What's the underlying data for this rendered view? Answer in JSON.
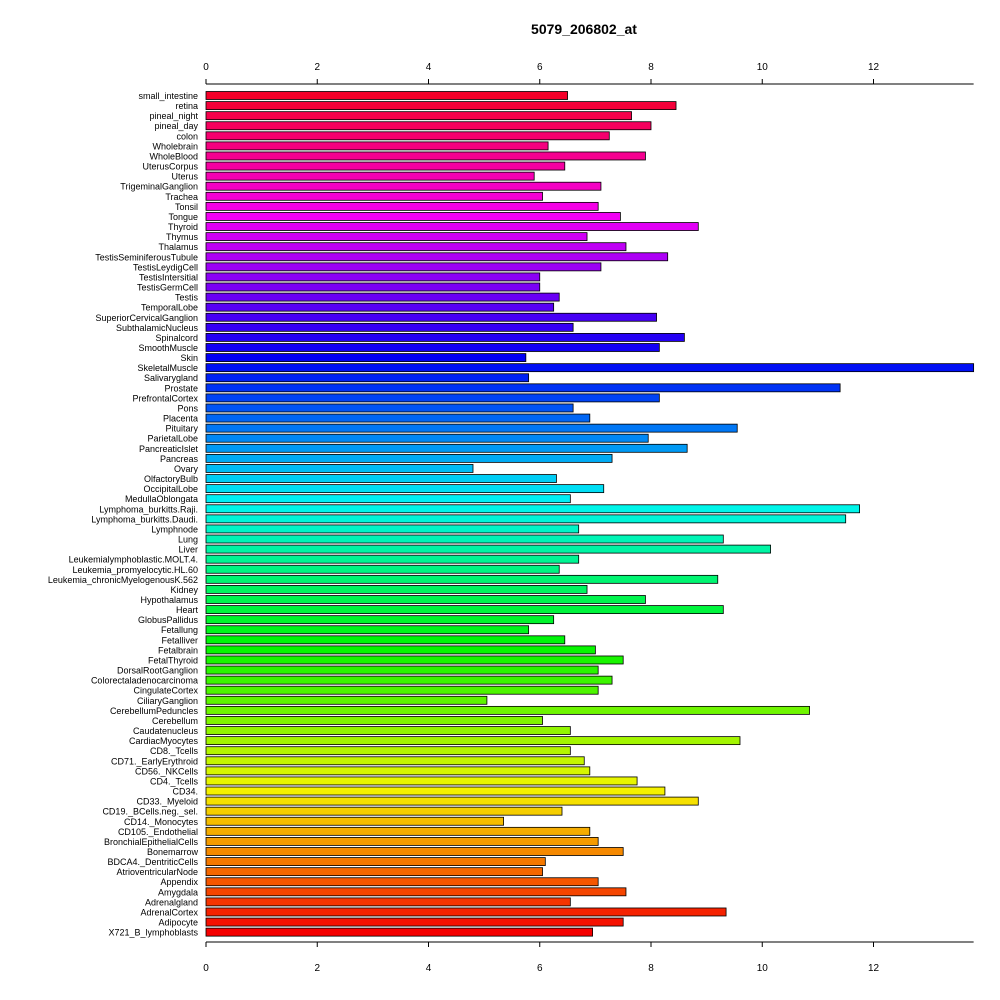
{
  "chart_data": {
    "type": "bar",
    "orientation": "horizontal",
    "title": "5079_206802_at",
    "xlabel": "",
    "ylabel": "",
    "xlim": [
      0,
      13.8
    ],
    "x_ticks": [
      0,
      2,
      4,
      6,
      8,
      10,
      12
    ],
    "grid": false,
    "legend": "none",
    "categories": [
      "small_intestine",
      "retina",
      "pineal_night",
      "pineal_day",
      "colon",
      "Wholebrain",
      "WholeBlood",
      "UterusCorpus",
      "Uterus",
      "TrigeminalGanglion",
      "Trachea",
      "Tonsil",
      "Tongue",
      "Thyroid",
      "Thymus",
      "Thalamus",
      "TestisSeminiferousTubule",
      "TestisLeydigCell",
      "TestisIntersitial",
      "TestisGermCell",
      "Testis",
      "TemporalLobe",
      "SuperiorCervicalGanglion",
      "SubthalamicNucleus",
      "Spinalcord",
      "SmoothMuscle",
      "Skin",
      "SkeletalMuscle",
      "Salivarygland",
      "Prostate",
      "PrefrontalCortex",
      "Pons",
      "Placenta",
      "Pituitary",
      "ParietalLobe",
      "PancreaticIslet",
      "Pancreas",
      "Ovary",
      "OlfactoryBulb",
      "OccipitalLobe",
      "MedullaOblongata",
      "Lymphoma_burkitts.Raji.",
      "Lymphoma_burkitts.Daudi.",
      "Lymphnode",
      "Lung",
      "Liver",
      "Leukemialymphoblastic.MOLT.4.",
      "Leukemia_promyelocytic.HL.60",
      "Leukemia_chronicMyelogenousK.562",
      "Kidney",
      "Hypothalamus",
      "Heart",
      "GlobusPallidus",
      "Fetallung",
      "Fetalliver",
      "Fetalbrain",
      "FetalThyroid",
      "DorsalRootGanglion",
      "Colorectaladenocarcinoma",
      "CingulateCortex",
      "CiliaryGanglion",
      "CerebellumPeduncles",
      "Cerebellum",
      "Caudatenucleus",
      "CardiacMyocytes",
      "CD8._Tcells",
      "CD71._EarlyErythroid",
      "CD56._NKCells",
      "CD4._Tcells",
      "CD34.",
      "CD33._Myeloid",
      "CD19._BCells.neg._sel.",
      "CD14._Monocytes",
      "CD105._Endothelial",
      "BronchialEpithelialCells",
      "Bonemarrow",
      "BDCA4._DentriticCells",
      "AtrioventricularNode",
      "Appendix",
      "Amygdala",
      "Adrenalgland",
      "AdrenalCortex",
      "Adipocyte",
      "X721_B_lymphoblasts"
    ],
    "values": [
      6.5,
      8.45,
      7.65,
      8.0,
      7.25,
      6.15,
      7.9,
      6.45,
      5.9,
      7.1,
      6.05,
      7.05,
      7.45,
      8.85,
      6.85,
      7.55,
      8.3,
      7.1,
      6.0,
      6.0,
      6.35,
      6.25,
      8.1,
      6.6,
      8.6,
      8.15,
      5.75,
      13.8,
      5.8,
      11.4,
      8.15,
      6.6,
      6.9,
      9.55,
      7.95,
      8.65,
      7.3,
      4.8,
      6.3,
      7.15,
      6.55,
      11.75,
      11.5,
      6.7,
      9.3,
      10.15,
      6.7,
      6.35,
      9.2,
      6.85,
      7.9,
      9.3,
      6.25,
      5.8,
      6.45,
      7.0,
      7.5,
      7.05,
      7.3,
      7.05,
      5.05,
      10.85,
      6.05,
      6.55,
      9.6,
      6.55,
      6.8,
      6.9,
      7.75,
      8.25,
      8.85,
      6.4,
      5.35,
      6.9,
      7.05,
      7.5,
      6.1,
      6.05,
      7.05,
      7.55,
      6.55,
      9.35,
      7.5,
      6.95
    ]
  }
}
